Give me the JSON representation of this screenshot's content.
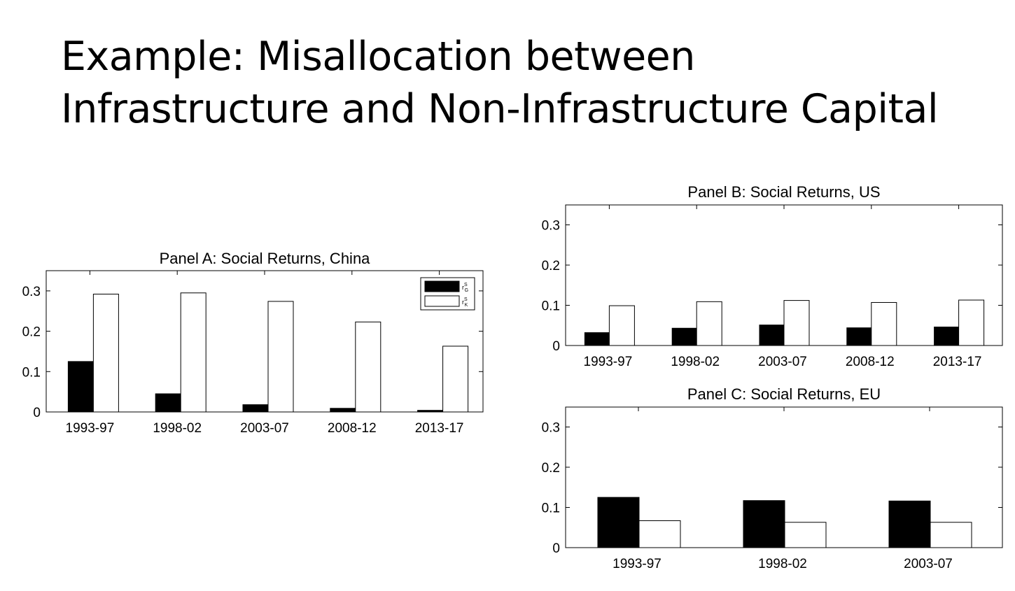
{
  "slide": {
    "title_line1": "Example: Misallocation between",
    "title_line2": "Infrastructure and Non-Infrastructure Capital"
  },
  "chart_data": [
    {
      "type": "bar",
      "title": "Panel A: Social Returns, China",
      "categories": [
        "1993-97",
        "1998-02",
        "2003-07",
        "2008-12",
        "2013-17"
      ],
      "series": [
        {
          "name": "r_G^S",
          "color": "#000000",
          "values": [
            0.125,
            0.045,
            0.018,
            0.009,
            0.004
          ]
        },
        {
          "name": "r_K^S",
          "color": "#ffffff",
          "values": [
            0.292,
            0.295,
            0.274,
            0.223,
            0.163
          ]
        }
      ],
      "ylim": [
        0,
        0.35
      ],
      "yticks": [
        "0",
        "0.1",
        "0.2",
        "0.3"
      ],
      "legend": "top-right",
      "grid": false
    },
    {
      "type": "bar",
      "title": "Panel B: Social Returns, US",
      "categories": [
        "1993-97",
        "1998-02",
        "2003-07",
        "2008-12",
        "2013-17"
      ],
      "series": [
        {
          "color": "#000000",
          "values": [
            0.032,
            0.043,
            0.051,
            0.044,
            0.046
          ]
        },
        {
          "color": "#ffffff",
          "values": [
            0.099,
            0.109,
            0.112,
            0.107,
            0.113
          ]
        }
      ],
      "ylim": [
        0,
        0.35
      ],
      "yticks": [
        "0",
        "0.1",
        "0.2",
        "0.3"
      ],
      "grid": false
    },
    {
      "type": "bar",
      "title": "Panel C: Social Returns, EU",
      "categories": [
        "1993-97",
        "1998-02",
        "2003-07"
      ],
      "series": [
        {
          "color": "#000000",
          "values": [
            0.125,
            0.117,
            0.116
          ]
        },
        {
          "color": "#ffffff",
          "values": [
            0.067,
            0.063,
            0.063
          ]
        }
      ],
      "ylim": [
        0,
        0.35
      ],
      "yticks": [
        "0",
        "0.1",
        "0.2",
        "0.3"
      ],
      "grid": false
    }
  ]
}
